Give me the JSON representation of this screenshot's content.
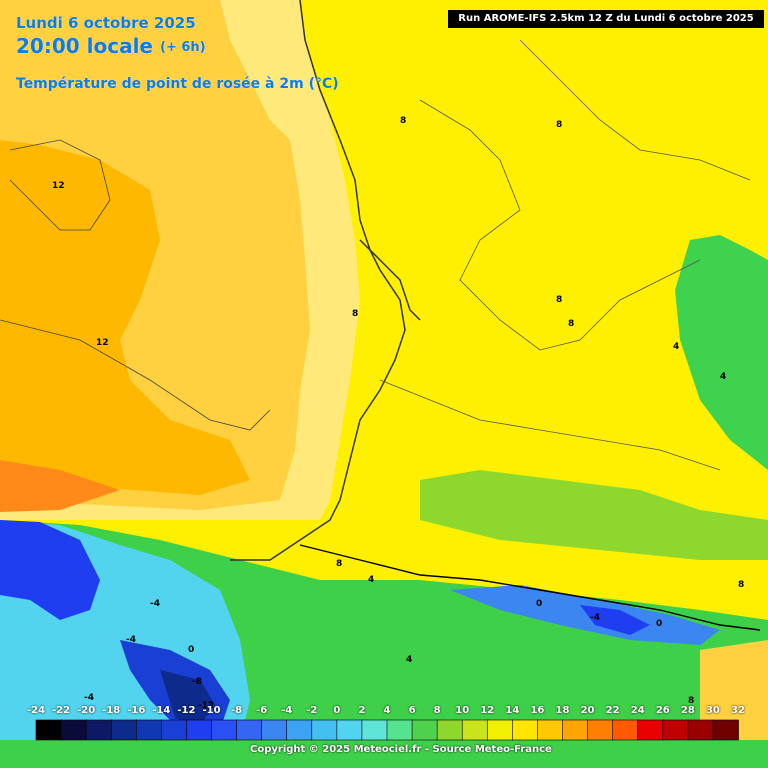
{
  "header": {
    "date_line": "Lundi 6 octobre 2025",
    "time_line": "20:00 locale",
    "forecast_hour": "(+ 6h)",
    "parameter": "Température de point de rosée à 2m (°C)"
  },
  "run_info": "Run AROME-IFS 2.5km 12 Z du Lundi 6 octobre 2025",
  "legend": {
    "labels": [
      "-24",
      "-22",
      "-20",
      "-18",
      "-16",
      "-14",
      "-12",
      "-10",
      "-8",
      "-6",
      "-4",
      "-2",
      "0",
      "2",
      "4",
      "6",
      "8",
      "10",
      "12",
      "14",
      "16",
      "18",
      "20",
      "22",
      "24",
      "26",
      "28",
      "30",
      "32"
    ],
    "colors": [
      "#000000",
      "#0b0b3a",
      "#0d1a63",
      "#0e2a8a",
      "#1038b0",
      "#1a3fd4",
      "#1e3ef0",
      "#2a4ff5",
      "#3466f3",
      "#3c86f2",
      "#3ca2f2",
      "#43bff0",
      "#52d4ee",
      "#5fe4d8",
      "#56e38f",
      "#4ed24e",
      "#8ed82e",
      "#c8e41c",
      "#f0f000",
      "#ffe600",
      "#ffc800",
      "#ffa500",
      "#ff8000",
      "#ff5a00",
      "#e80000",
      "#c00000",
      "#9a0000",
      "#700000"
    ]
  },
  "contour_labels": [
    {
      "text": "12"
    },
    {
      "text": "12"
    },
    {
      "text": "8"
    },
    {
      "text": "8"
    },
    {
      "text": "8"
    },
    {
      "text": "8"
    },
    {
      "text": "8"
    },
    {
      "text": "4"
    },
    {
      "text": "4"
    },
    {
      "text": "8"
    },
    {
      "text": "4"
    },
    {
      "text": "-4"
    },
    {
      "text": "-4"
    },
    {
      "text": "0"
    },
    {
      "text": "-8"
    },
    {
      "text": "-12"
    },
    {
      "text": "-4"
    },
    {
      "text": "4"
    },
    {
      "text": "0"
    },
    {
      "text": "-4"
    },
    {
      "text": "0"
    },
    {
      "text": "8"
    },
    {
      "text": "8"
    }
  ],
  "copyright": "Copyright © 2025 Meteociel.fr - Source Meteo-France"
}
